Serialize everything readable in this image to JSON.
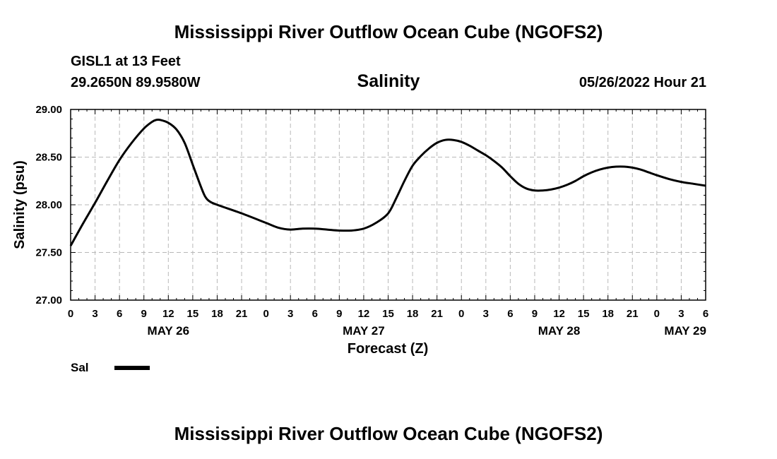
{
  "header": {
    "title": "Mississippi River Outflow Ocean Cube (NGOFS2)",
    "station": "GISL1 at 13 Feet",
    "coordinates": "29.2650N  89.9580W",
    "subtitle": "Salinity",
    "datetime": "05/26/2022 Hour 21"
  },
  "footer": {
    "title": "Mississippi River Outflow Ocean Cube (NGOFS2)"
  },
  "chart_data": {
    "type": "line",
    "title": "Salinity",
    "xlabel": "Forecast (Z)",
    "ylabel": "Salinity (psu)",
    "ylim": [
      27.0,
      29.0
    ],
    "y_ticks": [
      "27.00",
      "27.50",
      "28.00",
      "28.50",
      "29.00"
    ],
    "x_hours_range": [
      0,
      78
    ],
    "x_tick_labels": [
      "0",
      "3",
      "6",
      "9",
      "12",
      "15",
      "18",
      "21",
      "0",
      "3",
      "6",
      "9",
      "12",
      "15",
      "18",
      "21",
      "0",
      "3",
      "6",
      "9",
      "12",
      "15",
      "18",
      "21",
      "0",
      "3",
      "6"
    ],
    "day_labels": [
      {
        "label": "MAY 26",
        "hour": 12
      },
      {
        "label": "MAY 27",
        "hour": 36
      },
      {
        "label": "MAY 28",
        "hour": 60
      },
      {
        "label": "MAY 29",
        "hour": 75.5
      }
    ],
    "grid": true,
    "legend": {
      "position": "bottom-left",
      "label": "Sal"
    },
    "series": [
      {
        "name": "Sal",
        "color": "#000000",
        "x": [
          0,
          1.5,
          3,
          4.5,
          6,
          7.5,
          9,
          10,
          10.5,
          11,
          12,
          13,
          14,
          15,
          16,
          16.5,
          17,
          18,
          21,
          24,
          25.5,
          27,
          28.5,
          30,
          31.5,
          33,
          34.5,
          36,
          37.5,
          39,
          40,
          41,
          42,
          43,
          44,
          45,
          46,
          47,
          48,
          49,
          50,
          51,
          52,
          53,
          54,
          55,
          56,
          57,
          58,
          59,
          60,
          61,
          62,
          63,
          64,
          65,
          66,
          67,
          68,
          69,
          70,
          71,
          72,
          73.5,
          75,
          76.5,
          78
        ],
        "values": [
          27.57,
          27.8,
          28.02,
          28.25,
          28.47,
          28.65,
          28.8,
          28.87,
          28.89,
          28.89,
          28.86,
          28.79,
          28.65,
          28.42,
          28.19,
          28.09,
          28.04,
          28.0,
          27.91,
          27.81,
          27.76,
          27.74,
          27.75,
          27.75,
          27.74,
          27.73,
          27.73,
          27.75,
          27.81,
          27.91,
          28.07,
          28.25,
          28.41,
          28.51,
          28.59,
          28.65,
          28.68,
          28.68,
          28.66,
          28.62,
          28.57,
          28.52,
          28.46,
          28.39,
          28.3,
          28.22,
          28.17,
          28.15,
          28.15,
          28.16,
          28.18,
          28.21,
          28.25,
          28.3,
          28.34,
          28.37,
          28.39,
          28.4,
          28.4,
          28.39,
          28.37,
          28.34,
          28.31,
          28.27,
          28.24,
          28.22,
          28.2
        ]
      }
    ]
  }
}
